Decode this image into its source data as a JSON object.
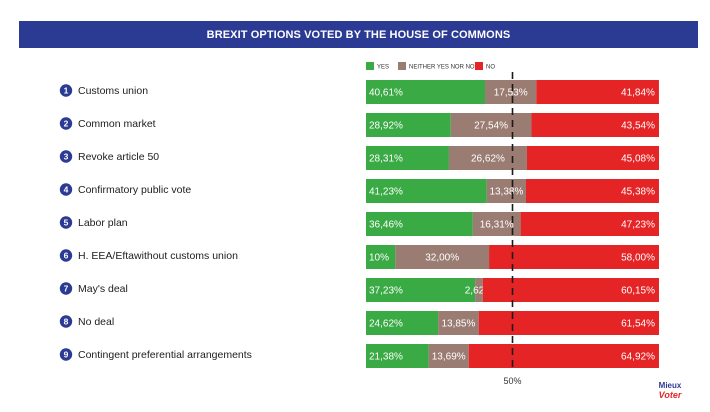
{
  "chart_data": {
    "type": "bar",
    "stacked": true,
    "orientation": "horizontal",
    "title": "BREXIT OPTIONS VOTED BY THE HOUSE OF COMMONS",
    "categories": [
      "Customs union",
      "Common market",
      "Revoke article 50",
      "Confirmatory public vote",
      "Labor plan",
      "H. EEA/Eftawithout customs union",
      "May's deal",
      "No deal",
      "Contingent preferential arrangements"
    ],
    "series": [
      {
        "name": "YES",
        "color": "#3aaa44",
        "values": [
          40.61,
          28.92,
          28.31,
          41.23,
          36.46,
          10.0,
          37.23,
          24.62,
          21.38
        ],
        "labels": [
          "40,61%",
          "28,92%",
          "28,31%",
          "41,23%",
          "36,46%",
          "10%",
          "37,23%",
          "24,62%",
          "21,38%"
        ]
      },
      {
        "name": "NEITHER YES NOR NO",
        "color": "#9a7c72",
        "values": [
          17.53,
          27.54,
          26.62,
          13.38,
          16.31,
          32.0,
          2.62,
          13.85,
          13.69
        ],
        "labels": [
          "17,53%",
          "27,54%",
          "26,62%",
          "13,38%",
          "16,31%",
          "32,00%",
          "2,62%",
          "13,85%",
          "13,69%"
        ]
      },
      {
        "name": "NO",
        "color": "#e52426",
        "values": [
          41.84,
          43.54,
          45.08,
          45.38,
          47.23,
          58.0,
          60.15,
          61.54,
          64.92
        ],
        "labels": [
          "41,84%",
          "43,54%",
          "45,08%",
          "45,38%",
          "47,23%",
          "58,00%",
          "60,15%",
          "61,54%",
          "64,92%"
        ]
      }
    ],
    "reference_line": {
      "value": 50,
      "label": "50%"
    },
    "xlim": [
      0,
      100
    ],
    "legend_position": "top"
  },
  "logo": {
    "line1": "Mieux",
    "line2": "Voter"
  }
}
